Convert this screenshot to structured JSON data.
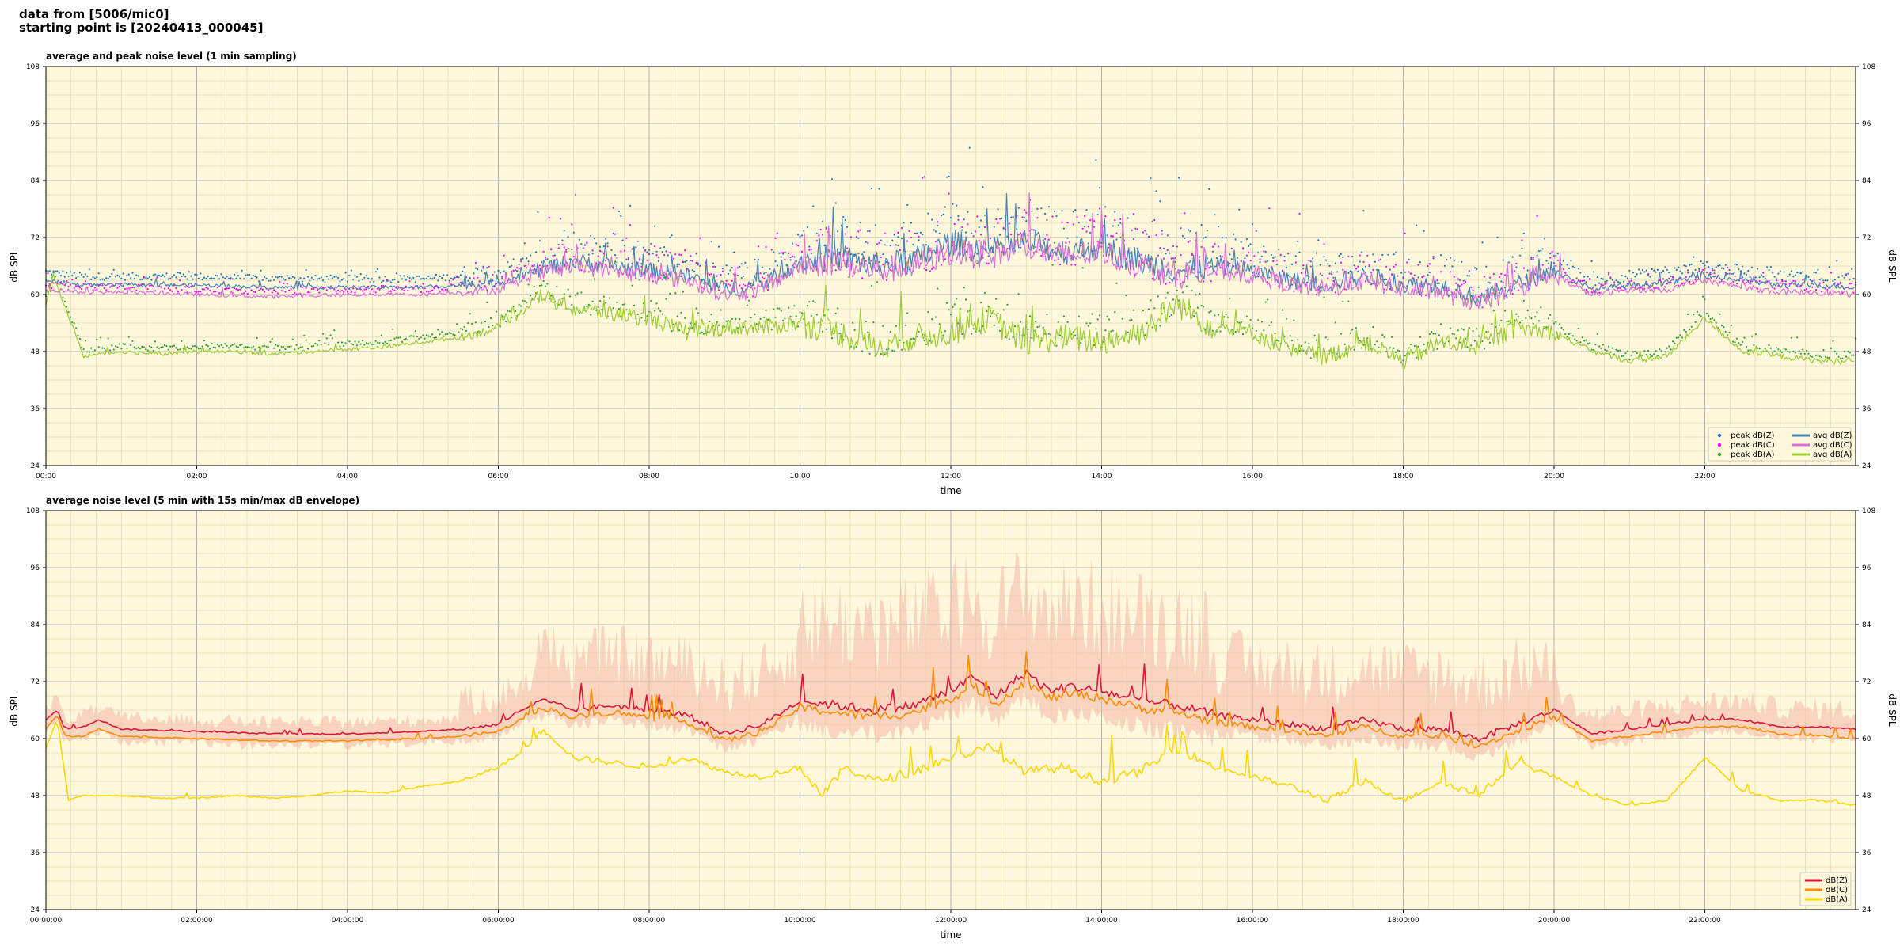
{
  "header": {
    "line1": "data from [5006/mic0]",
    "line2": "starting point is [20240413_000045]"
  },
  "colors": {
    "background": "#fff8dc",
    "grid_major": "#b0b0b0",
    "grid_minor": "#e6d9b0",
    "peak_z": "#1f77b4",
    "peak_c": "#ff00ff",
    "peak_a": "#2ca02c",
    "avg_z": "#4682b4",
    "avg_c": "#da70d6",
    "avg_a": "#9acd32",
    "dbz": "#dc143c",
    "dbc": "#ff8c00",
    "dba": "#ffd700",
    "envelope": "#f4b8a8"
  },
  "chart_data": [
    {
      "type": "line",
      "title": "average and peak noise level (1 min sampling)",
      "xlabel": "time",
      "ylabel": "dB SPL",
      "ylabel_right": "dB SPL",
      "ylim": [
        24,
        108
      ],
      "yticks": [
        "24",
        "36",
        "48",
        "60",
        "72",
        "84",
        "96",
        "108"
      ],
      "xlim_hours": [
        0,
        24
      ],
      "xtick_labels": [
        "00:00",
        "02:00",
        "04:00",
        "06:00",
        "08:00",
        "10:00",
        "12:00",
        "14:00",
        "16:00",
        "18:00",
        "20:00",
        "22:00"
      ],
      "grid": true,
      "legend_position": "bottom-right",
      "legend": [
        "peak dB(Z)",
        "peak dB(C)",
        "peak dB(A)",
        "avg dB(Z)",
        "avg dB(C)",
        "avg dB(A)"
      ],
      "series": [
        {
          "name": "avg dB(Z)",
          "kind": "line",
          "x_hours": [
            0,
            0.5,
            1,
            2,
            3,
            4,
            5,
            5.5,
            6,
            6.5,
            7,
            7.5,
            8,
            8.5,
            9,
            9.5,
            10,
            10.5,
            11,
            11.5,
            12,
            12.5,
            13,
            13.5,
            14,
            14.5,
            15,
            15.5,
            16,
            16.5,
            17,
            17.5,
            18,
            18.5,
            19,
            19.5,
            20,
            20.5,
            21,
            21.5,
            22,
            22.5,
            23,
            23.5,
            24
          ],
          "values": [
            63,
            62,
            62,
            62,
            61.5,
            61.5,
            61.5,
            62,
            62.5,
            65,
            67,
            66,
            65,
            64,
            61,
            62,
            67,
            68,
            66,
            67,
            71,
            69,
            71,
            69,
            70,
            67,
            65,
            66,
            65,
            63,
            62,
            64,
            62,
            62,
            59,
            62,
            65,
            61,
            62,
            62.5,
            64,
            63,
            62,
            62,
            61.5
          ]
        },
        {
          "name": "avg dB(C)",
          "kind": "line",
          "x_hours": [
            0,
            0.5,
            1,
            2,
            3,
            4,
            5,
            5.5,
            6,
            6.5,
            7,
            7.5,
            8,
            8.5,
            9,
            9.5,
            10,
            10.5,
            11,
            11.5,
            12,
            12.5,
            13,
            13.5,
            14,
            14.5,
            15,
            15.5,
            16,
            16.5,
            17,
            17.5,
            18,
            18.5,
            19,
            19.5,
            20,
            20.5,
            21,
            21.5,
            22,
            22.5,
            23,
            23.5,
            24
          ],
          "values": [
            61,
            60.5,
            60.5,
            60,
            59.5,
            60,
            60,
            60.5,
            61,
            64,
            66,
            65,
            64,
            63,
            60,
            61,
            66,
            67,
            65,
            66,
            69,
            68,
            70,
            68,
            69,
            66,
            64,
            65,
            64,
            62,
            61,
            63,
            61,
            60.5,
            58,
            61,
            64,
            60,
            61,
            61,
            63,
            61.5,
            60.5,
            60.5,
            60
          ]
        },
        {
          "name": "avg dB(A)",
          "kind": "line",
          "x_hours": [
            0,
            0.1,
            0.5,
            1,
            1.5,
            2,
            2.5,
            3,
            3.5,
            4,
            4.5,
            5,
            5.5,
            6,
            6.3,
            6.5,
            7,
            7.5,
            8,
            8.5,
            9,
            9.5,
            10,
            10.5,
            11,
            11.5,
            12,
            12.5,
            13,
            13.5,
            14,
            14.5,
            15,
            15.5,
            16,
            16.5,
            17,
            17.5,
            18,
            18.5,
            19,
            19.5,
            20,
            20.5,
            21,
            21.5,
            22,
            22.5,
            23,
            23.5,
            24
          ],
          "values": [
            58,
            64,
            47,
            48,
            47.5,
            48,
            48,
            47.5,
            48,
            48.5,
            49,
            50,
            51,
            53,
            56,
            60,
            57,
            56,
            55,
            52,
            53,
            53,
            54,
            52,
            49,
            51,
            52,
            55,
            50,
            51,
            50,
            52,
            58,
            53,
            52,
            48,
            47,
            50,
            46,
            50,
            49,
            53,
            52,
            48,
            46,
            47,
            55,
            48,
            47,
            46,
            46
          ]
        },
        {
          "name": "peak dB(Z)",
          "kind": "scatter",
          "offset": 1.5
        },
        {
          "name": "peak dB(C)",
          "kind": "scatter",
          "offset": 0.8
        },
        {
          "name": "peak dB(A)",
          "kind": "scatter",
          "offset": 1.0
        }
      ]
    },
    {
      "type": "line",
      "title": "average noise level (5 min with 15s min/max dB envelope)",
      "xlabel": "time",
      "ylabel": "dB SPL",
      "ylabel_right": "dB SPL",
      "ylim": [
        24,
        108
      ],
      "yticks": [
        "24",
        "36",
        "48",
        "60",
        "72",
        "84",
        "96",
        "108"
      ],
      "xlim_hours": [
        0,
        24
      ],
      "xtick_labels": [
        "00:00:00",
        "02:00:00",
        "04:00:00",
        "06:00:00",
        "08:00:00",
        "10:00:00",
        "12:00:00",
        "14:00:00",
        "16:00:00",
        "18:00:00",
        "20:00:00",
        "22:00:00"
      ],
      "grid": true,
      "legend_position": "bottom-right",
      "legend": [
        "dB(Z)",
        "dB(C)",
        "dB(A)"
      ],
      "series": [
        {
          "name": "dB(Z)",
          "kind": "line",
          "x_hours": [
            0,
            0.15,
            0.25,
            0.5,
            0.7,
            1,
            2,
            3,
            4,
            5,
            5.5,
            6,
            6.3,
            6.6,
            7,
            7.5,
            8,
            8.5,
            9,
            9.5,
            10,
            10.5,
            11,
            11.5,
            12,
            12.3,
            12.6,
            13,
            13.3,
            13.6,
            14,
            14.5,
            15,
            15.5,
            16,
            16.5,
            17,
            17.5,
            18,
            18.5,
            19,
            19.5,
            20,
            20.5,
            21,
            21.5,
            22,
            22.5,
            23,
            23.5,
            24
          ],
          "values": [
            64,
            66,
            62,
            62.5,
            64,
            62,
            61.5,
            61,
            61,
            61.5,
            62,
            63,
            66,
            68,
            66,
            67,
            66,
            65,
            61,
            63,
            68,
            67,
            66,
            67,
            70,
            73,
            69,
            74,
            70,
            71,
            70,
            68,
            67,
            65,
            64,
            63,
            62,
            64,
            62,
            62,
            60,
            63,
            66,
            61,
            62,
            63,
            64,
            64,
            62.5,
            62.5,
            62
          ]
        },
        {
          "name": "dB(C)",
          "kind": "line",
          "x_hours": [
            0,
            0.15,
            0.25,
            0.5,
            0.7,
            1,
            2,
            3,
            4,
            5,
            5.5,
            6,
            6.3,
            6.6,
            7,
            7.5,
            8,
            8.5,
            9,
            9.5,
            10,
            10.5,
            11,
            11.5,
            12,
            12.3,
            12.6,
            13,
            13.3,
            13.6,
            14,
            14.5,
            15,
            15.5,
            16,
            16.5,
            17,
            17.5,
            18,
            18.5,
            19,
            19.5,
            20,
            20.5,
            21,
            21.5,
            22,
            22.5,
            23,
            23.5,
            24
          ],
          "values": [
            62,
            65,
            60.5,
            60.5,
            62,
            60.5,
            60,
            59.5,
            59.5,
            60,
            60.5,
            61.5,
            64,
            66.5,
            64.5,
            65.5,
            64.5,
            63.5,
            59.5,
            61.5,
            66.5,
            65.5,
            64.5,
            65.5,
            68.5,
            71,
            67.5,
            72,
            68.5,
            69.5,
            68.5,
            66.5,
            65.5,
            63.5,
            62.5,
            61.5,
            60.5,
            62.5,
            60.5,
            60.5,
            58.5,
            61.5,
            64.5,
            59.5,
            60.5,
            61.5,
            62.5,
            62.5,
            61,
            60.5,
            60
          ]
        },
        {
          "name": "dB(A)",
          "kind": "line",
          "x_hours": [
            0,
            0.15,
            0.3,
            0.5,
            1,
            1.5,
            2,
            2.5,
            3,
            3.5,
            4,
            4.5,
            5,
            5.5,
            6,
            6.3,
            6.6,
            7,
            7.5,
            8,
            8.5,
            9,
            9.5,
            10,
            10.3,
            10.6,
            11,
            11.5,
            12,
            12.5,
            13,
            13.5,
            14,
            14.5,
            15,
            15.5,
            16,
            16.5,
            17,
            17.5,
            18,
            18.5,
            19,
            19.5,
            20,
            20.5,
            21,
            21.5,
            22,
            22.5,
            23,
            23.5,
            24
          ],
          "values": [
            58,
            64,
            47,
            48,
            48,
            47.5,
            47.5,
            48,
            47.5,
            48,
            49,
            48.5,
            50,
            51,
            54,
            57,
            62,
            56,
            55,
            54,
            56,
            53,
            52,
            54,
            48,
            54,
            51,
            53,
            56,
            58,
            53,
            54,
            51,
            53,
            58,
            54,
            52,
            50,
            47,
            51,
            47,
            51,
            48,
            55,
            52,
            48,
            46,
            47,
            56,
            49,
            47,
            47,
            46
          ]
        }
      ],
      "envelope": {
        "name": "15s min/max envelope",
        "low_offset": -2.5,
        "high_offset": 6
      }
    }
  ]
}
